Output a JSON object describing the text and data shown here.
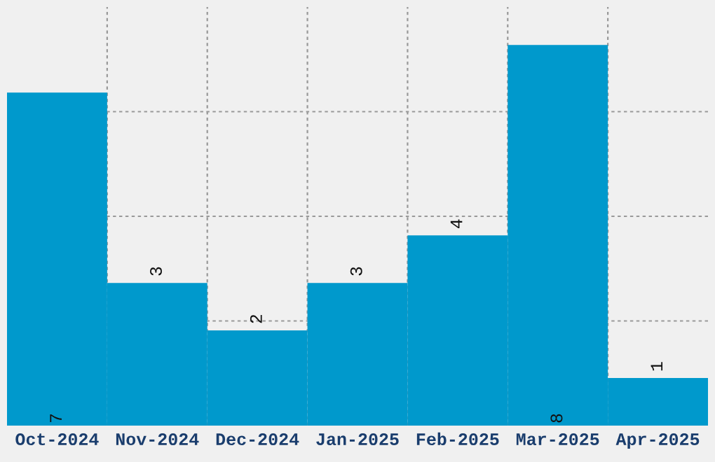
{
  "chart_data": {
    "type": "bar",
    "categories": [
      "Oct-2024",
      "Nov-2024",
      "Dec-2024",
      "Jan-2025",
      "Feb-2025",
      "Mar-2025",
      "Apr-2025"
    ],
    "values": [
      7,
      3,
      2,
      3,
      4,
      8,
      1
    ],
    "color": "#0099cc",
    "ylim": [
      0,
      8.8
    ],
    "yticks": [
      {
        "value": 2.2,
        "label": null
      },
      {
        "value": 4.4,
        "label": null
      },
      {
        "value": 6.6,
        "label": null
      }
    ],
    "tick_labels": "x",
    "data_labels": true,
    "grid": true
  }
}
